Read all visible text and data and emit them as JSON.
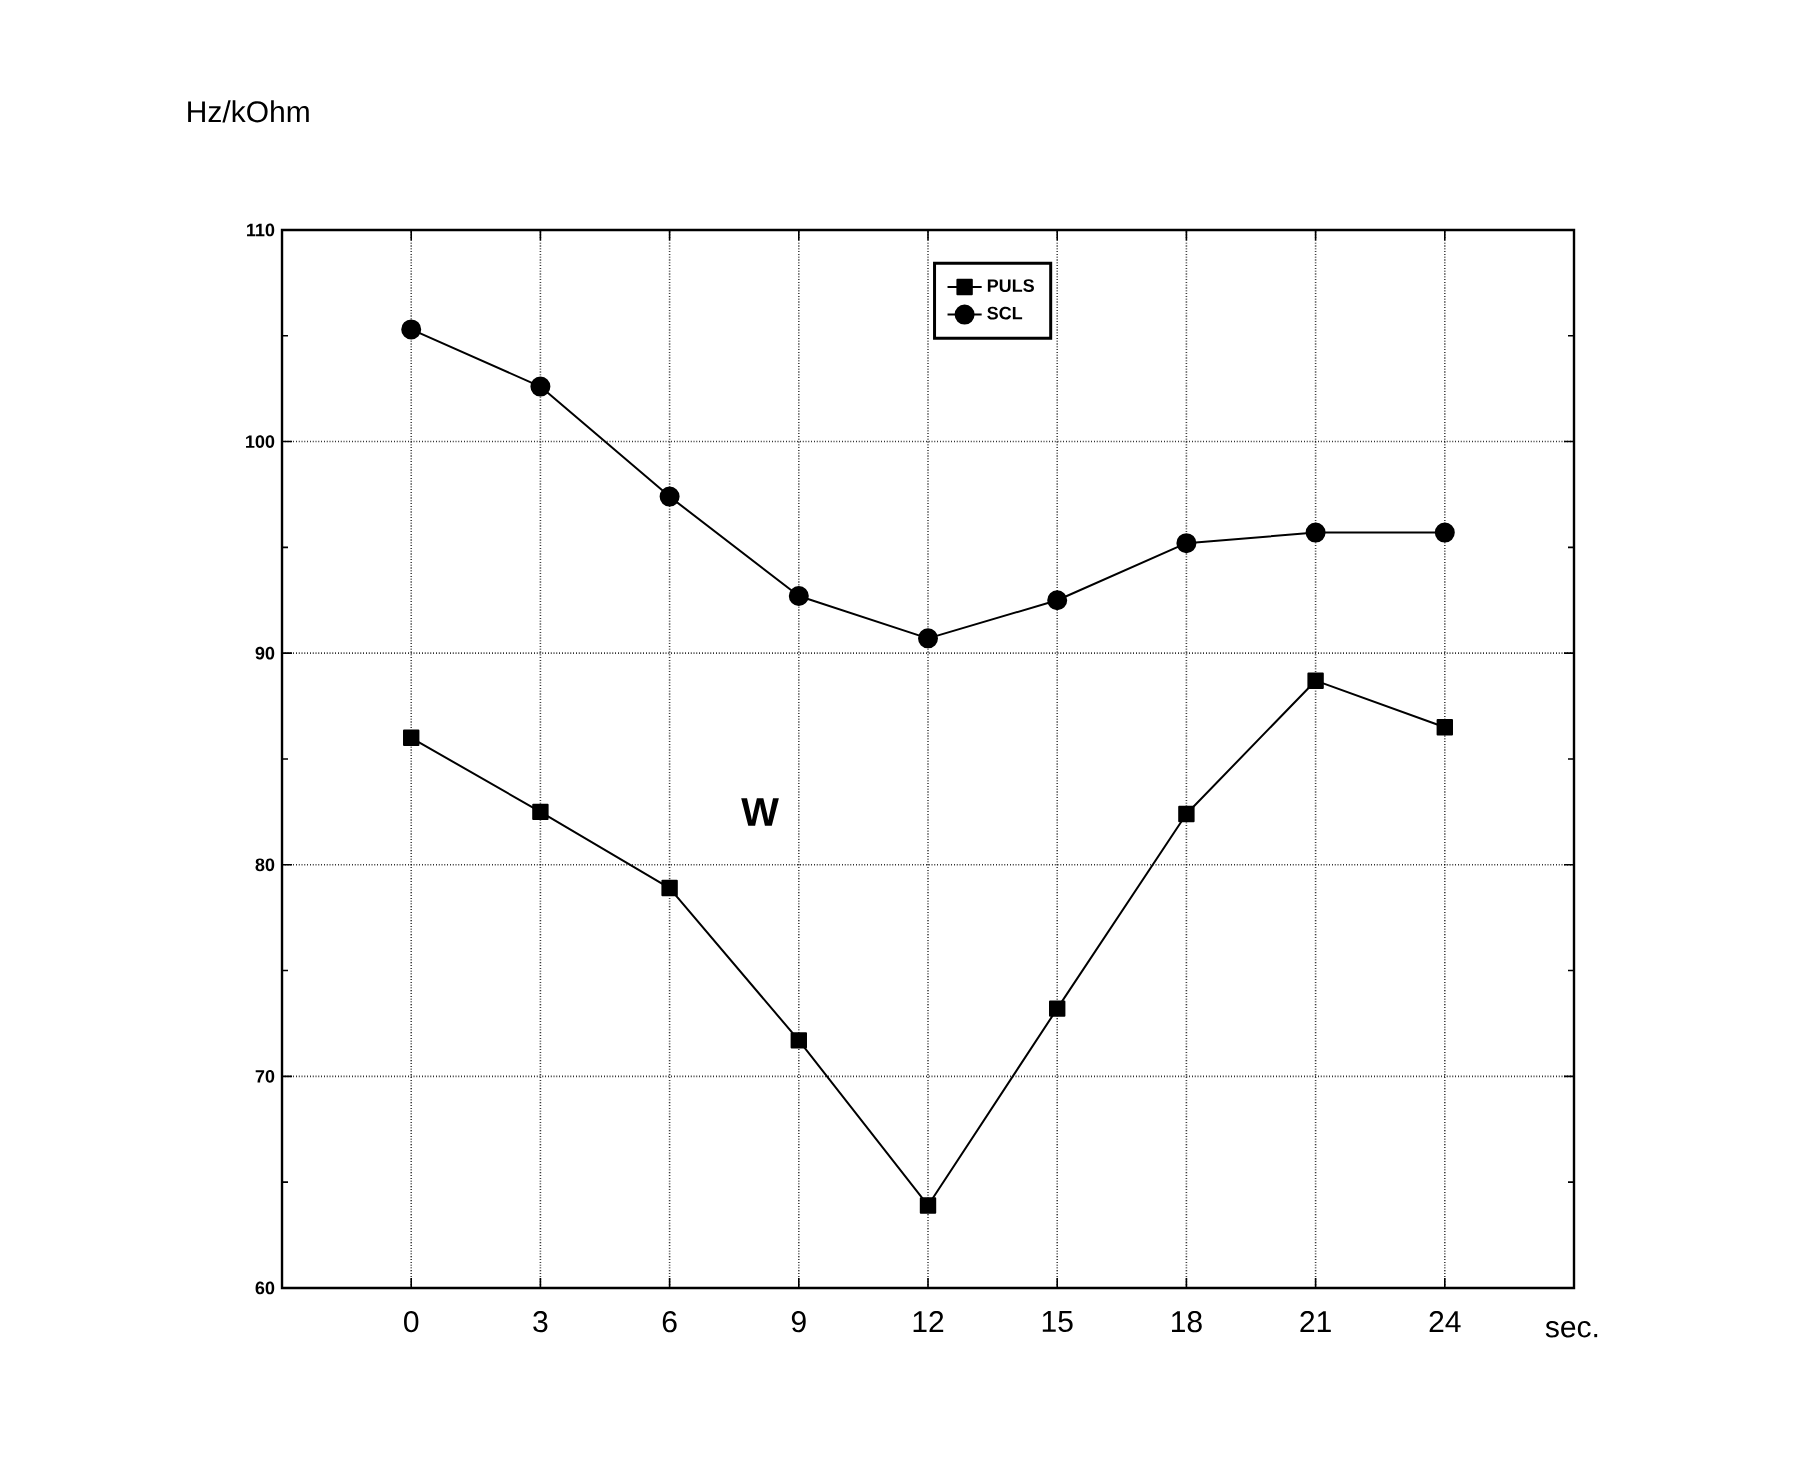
{
  "chart_data": {
    "type": "line",
    "xlabel": "sec.",
    "ylabel": "Hz/kOhm",
    "x": [
      0,
      3,
      6,
      9,
      12,
      15,
      18,
      21,
      24
    ],
    "xlim": [
      -3,
      27
    ],
    "xticks": [
      {
        "value": -3,
        "label": null
      },
      0,
      3,
      6,
      9,
      12,
      15,
      18,
      21,
      24,
      {
        "value": 27,
        "label": null
      }
    ],
    "ylim": [
      60,
      110
    ],
    "yticks": [
      60,
      70,
      80,
      90,
      100,
      110
    ],
    "grid": true,
    "legend": "top",
    "series": [
      {
        "name": "PULS",
        "color": "#000000",
        "marker": "square",
        "values": [
          86.0,
          82.5,
          78.9,
          71.7,
          63.9,
          73.2,
          82.4,
          88.7,
          86.5
        ]
      },
      {
        "name": "SCL",
        "color": "#000000",
        "marker": "circle",
        "values": [
          105.3,
          102.6,
          97.4,
          92.7,
          90.7,
          92.5,
          95.2,
          95.7,
          95.7
        ]
      }
    ],
    "annotations": [
      "W"
    ]
  }
}
